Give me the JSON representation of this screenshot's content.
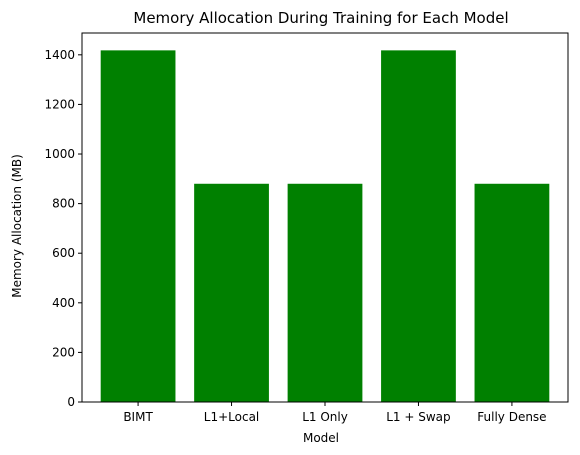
{
  "chart_data": {
    "type": "bar",
    "title": "Memory Allocation During Training for Each Model",
    "xlabel": "Model",
    "ylabel": "Memory Allocation (MB)",
    "categories": [
      "BIMT",
      "L1+Local",
      "L1 Only",
      "L1 + Swap",
      "Fully Dense"
    ],
    "values": [
      1418,
      880,
      880,
      1418,
      880
    ],
    "ylim": [
      0,
      1488
    ],
    "yticks": [
      0,
      200,
      400,
      600,
      800,
      1000,
      1200,
      1400
    ],
    "bar_color": "#008000",
    "grid": false,
    "legend": "none"
  }
}
